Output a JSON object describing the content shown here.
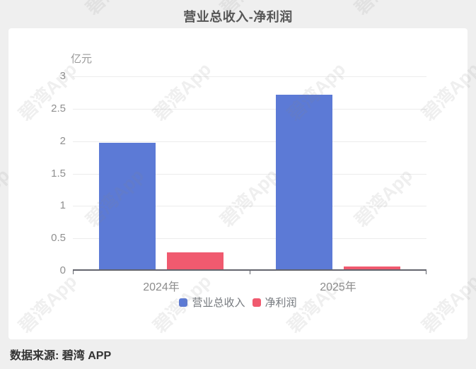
{
  "title": "营业总收入-净利润",
  "footer": {
    "source_label": "数据来源: 碧湾 APP"
  },
  "watermark": {
    "text": "碧湾App"
  },
  "chart_data": {
    "type": "bar",
    "title": "营业总收入-净利润",
    "unit_label": "亿元",
    "xlabel": "",
    "ylabel": "亿元",
    "categories": [
      "2024年",
      "2025年"
    ],
    "series": [
      {
        "name": "营业总收入",
        "color": "#5C7AD6",
        "values": [
          1.95,
          2.7
        ]
      },
      {
        "name": "净利润",
        "color": "#F05A6F",
        "values": [
          0.26,
          0.04
        ]
      }
    ],
    "ylim": [
      0,
      3
    ],
    "yticks": [
      0,
      0.5,
      1,
      1.5,
      2,
      2.5,
      3
    ],
    "grid": true,
    "legend_position": "bottom",
    "axis_color": "#63656d",
    "grid_color": "#ececec"
  }
}
